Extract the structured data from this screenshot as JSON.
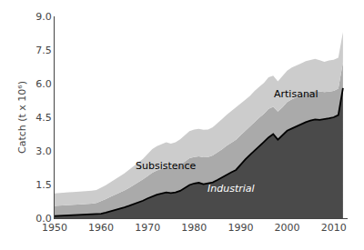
{
  "chart_data": {
    "type": "area",
    "stacked": true,
    "ylabel": "Catch (t x 10⁶)",
    "x": [
      1950,
      1951,
      1952,
      1953,
      1954,
      1955,
      1956,
      1957,
      1958,
      1959,
      1960,
      1961,
      1962,
      1963,
      1964,
      1965,
      1966,
      1967,
      1968,
      1969,
      1970,
      1971,
      1972,
      1973,
      1974,
      1975,
      1976,
      1977,
      1978,
      1979,
      1980,
      1981,
      1982,
      1983,
      1984,
      1985,
      1986,
      1987,
      1988,
      1989,
      1990,
      1991,
      1992,
      1993,
      1994,
      1995,
      1996,
      1997,
      1998,
      1999,
      2000,
      2001,
      2002,
      2003,
      2004,
      2005,
      2006,
      2007,
      2008,
      2009,
      2010,
      2011,
      2012
    ],
    "series": [
      {
        "name": "Industrial",
        "color": "#4a4a4a",
        "values": [
          0.1,
          0.11,
          0.11,
          0.12,
          0.13,
          0.14,
          0.14,
          0.15,
          0.16,
          0.18,
          0.2,
          0.25,
          0.3,
          0.36,
          0.42,
          0.48,
          0.55,
          0.62,
          0.7,
          0.78,
          0.88,
          0.98,
          1.05,
          1.1,
          1.15,
          1.12,
          1.15,
          1.22,
          1.35,
          1.48,
          1.55,
          1.58,
          1.52,
          1.55,
          1.6,
          1.7,
          1.82,
          1.95,
          2.05,
          2.15,
          2.4,
          2.62,
          2.82,
          3.0,
          3.2,
          3.4,
          3.6,
          3.75,
          3.5,
          3.7,
          3.9,
          4.0,
          4.1,
          4.18,
          4.28,
          4.35,
          4.4,
          4.38,
          4.4,
          4.45,
          4.5,
          4.6,
          5.8
        ]
      },
      {
        "name": "Artisanal",
        "color": "#aaaaaa",
        "values": [
          0.45,
          0.46,
          0.47,
          0.47,
          0.47,
          0.47,
          0.48,
          0.48,
          0.49,
          0.5,
          0.55,
          0.6,
          0.65,
          0.68,
          0.72,
          0.76,
          0.8,
          0.85,
          0.9,
          0.95,
          1.0,
          1.05,
          1.08,
          1.1,
          1.12,
          1.1,
          1.12,
          1.15,
          1.18,
          1.2,
          1.18,
          1.18,
          1.2,
          1.18,
          1.2,
          1.22,
          1.25,
          1.28,
          1.3,
          1.35,
          1.3,
          1.28,
          1.25,
          1.3,
          1.28,
          1.25,
          1.28,
          1.22,
          1.25,
          1.25,
          1.28,
          1.3,
          1.28,
          1.3,
          1.3,
          1.28,
          1.28,
          1.28,
          1.22,
          1.2,
          1.18,
          1.18,
          1.15
        ]
      },
      {
        "name": "Subsistence",
        "color": "#cccccc",
        "values": [
          0.55,
          0.56,
          0.57,
          0.57,
          0.57,
          0.57,
          0.57,
          0.58,
          0.58,
          0.58,
          0.6,
          0.62,
          0.65,
          0.68,
          0.72,
          0.76,
          0.8,
          0.84,
          0.88,
          0.92,
          0.98,
          1.05,
          1.08,
          1.1,
          1.12,
          1.1,
          1.12,
          1.15,
          1.18,
          1.2,
          1.22,
          1.22,
          1.22,
          1.22,
          1.25,
          1.3,
          1.35,
          1.38,
          1.42,
          1.45,
          1.4,
          1.38,
          1.38,
          1.38,
          1.38,
          1.38,
          1.4,
          1.38,
          1.35,
          1.38,
          1.4,
          1.42,
          1.42,
          1.42,
          1.42,
          1.42,
          1.42,
          1.38,
          1.35,
          1.38,
          1.38,
          1.38,
          1.35
        ]
      }
    ],
    "xlim": [
      1950,
      2013
    ],
    "xticks": [
      1950,
      1960,
      1970,
      1980,
      1990,
      2000,
      2010
    ],
    "ylim": [
      0.0,
      9.0
    ],
    "yticks": [
      {
        "value": 0.0,
        "label": "0.0"
      },
      1.5,
      {
        "value": 3.0,
        "label": "3.0"
      },
      4.5,
      {
        "value": 6.0,
        "label": "6.0"
      },
      7.5,
      {
        "value": 9.0,
        "label": "9.0"
      }
    ],
    "grid": false
  }
}
